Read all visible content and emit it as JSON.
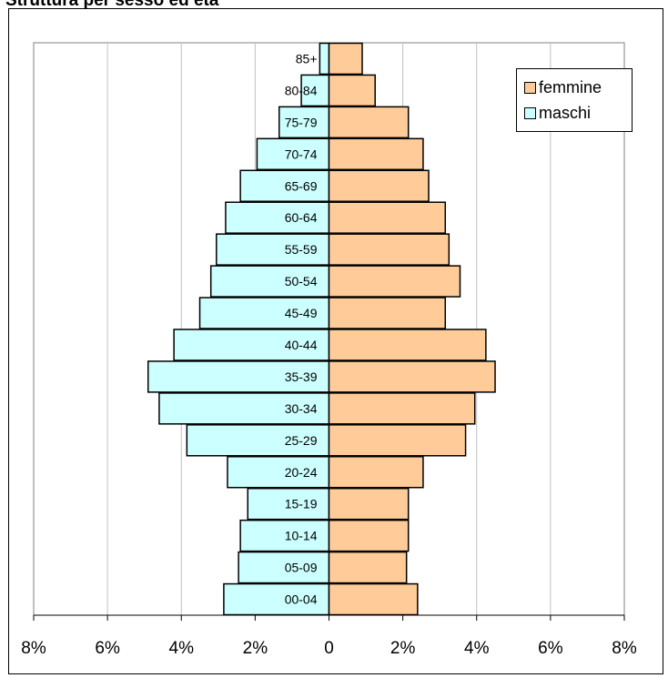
{
  "chart_data": {
    "type": "bar",
    "orientation": "horizontal",
    "title": "Struttura per sesso ed età",
    "categories": [
      "00-04",
      "05-09",
      "10-14",
      "15-19",
      "20-24",
      "25-29",
      "30-34",
      "35-39",
      "40-44",
      "45-49",
      "50-54",
      "55-59",
      "60-64",
      "65-69",
      "70-74",
      "75-79",
      "80-84",
      "85+"
    ],
    "series": [
      {
        "name": "femmine",
        "color": "#ffcc99",
        "values": [
          2.4,
          2.1,
          2.15,
          2.15,
          2.55,
          3.7,
          3.95,
          4.5,
          4.25,
          3.15,
          3.55,
          3.25,
          3.15,
          2.7,
          2.55,
          2.15,
          1.25,
          0.9
        ]
      },
      {
        "name": "maschi",
        "color": "#ccffff",
        "values": [
          2.85,
          2.45,
          2.4,
          2.2,
          2.75,
          3.85,
          4.6,
          4.9,
          4.2,
          3.5,
          3.2,
          3.05,
          2.8,
          2.4,
          1.95,
          1.35,
          0.75,
          0.25
        ]
      }
    ],
    "xlim": [
      -8,
      8
    ],
    "xticks": [
      -8,
      -6,
      -4,
      -2,
      0,
      2,
      4,
      6,
      8
    ],
    "xtick_labels": [
      "8%",
      "6%",
      "4%",
      "2%",
      "0",
      "2%",
      "4%",
      "6%",
      "8%"
    ],
    "grid": true,
    "legend_position": "top-right",
    "plot_background": "#ffffff",
    "gridline_color": "#c0c0c0"
  }
}
